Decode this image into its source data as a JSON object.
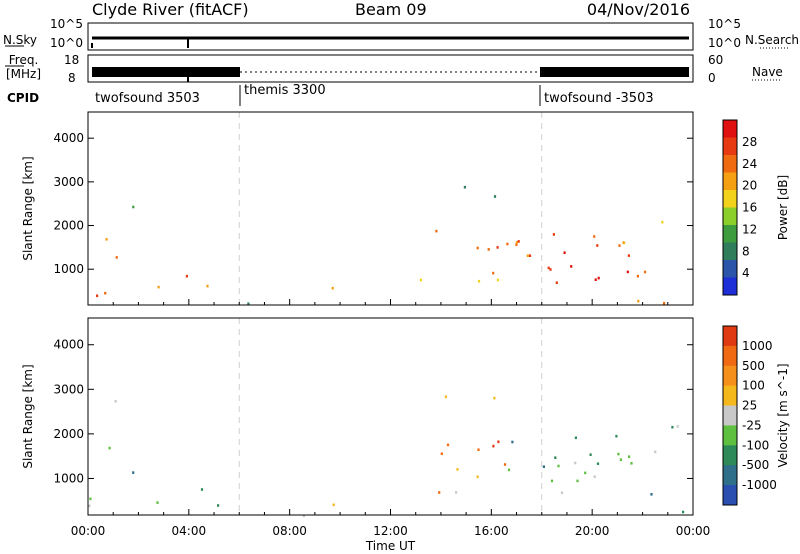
{
  "header": {
    "title": "Clyde River (fitACF)",
    "beam": "Beam 09",
    "date": "04/Nov/2016"
  },
  "sky_panel": {
    "left_label": "N.Sky",
    "right_label": "N.Search",
    "left_ticks": [
      "10^5",
      "10^0"
    ],
    "right_ticks": [
      "10^5",
      "10^0"
    ]
  },
  "freq_panel": {
    "left_label_line1": "Freq.",
    "left_label_line2": "[MHz]",
    "right_label": "Nave",
    "left_ticks": [
      "18",
      "8"
    ],
    "right_ticks": [
      "60",
      "0"
    ]
  },
  "cpid": {
    "label": "CPID",
    "segments": [
      {
        "name": "twofsound 3503",
        "start_hour": 0
      },
      {
        "name": "themis 3300",
        "start_hour": 6
      },
      {
        "name": "twofsound -3503",
        "start_hour": 18
      }
    ]
  },
  "chart_data": [
    {
      "type": "heatmap",
      "title": "Power",
      "ylabel": "Slant Range [km]",
      "xlabel": "",
      "ylim": [
        180,
        4600
      ],
      "yticks": [
        1000,
        2000,
        3000,
        4000
      ],
      "xlim": [
        0,
        24
      ],
      "colorbar_label": "Power [dB]",
      "colorbar_ticks": [
        "4",
        "8",
        "12",
        "16",
        "20",
        "24",
        "28"
      ],
      "colorbar_colors": [
        "#1e2fd8",
        "#2a55a8",
        "#2f7d5a",
        "#3d9c3d",
        "#8ccf2a",
        "#f2d21a",
        "#f5a013",
        "#f06a10",
        "#e83a10",
        "#e01010"
      ]
    },
    {
      "type": "heatmap",
      "title": "Velocity",
      "ylabel": "Slant Range [km]",
      "xlabel": "Time UT",
      "ylim": [
        180,
        4600
      ],
      "yticks": [
        1000,
        2000,
        3000,
        4000
      ],
      "xlim": [
        0,
        24
      ],
      "xticks": [
        "00:00",
        "04:00",
        "08:00",
        "12:00",
        "16:00",
        "20:00",
        "00:00"
      ],
      "colorbar_label": "Velocity [m s^-1]",
      "colorbar_ticks": [
        "1000",
        "500",
        "100",
        "25",
        "-25",
        "-100",
        "-500",
        "-1000"
      ],
      "colorbar_colors": [
        "#2a4fb0",
        "#2f6f8a",
        "#2f8a5a",
        "#5fbf3f",
        "#c8c8c8",
        "#f5b81c",
        "#f5911a",
        "#f06a12",
        "#e03a12"
      ]
    }
  ]
}
